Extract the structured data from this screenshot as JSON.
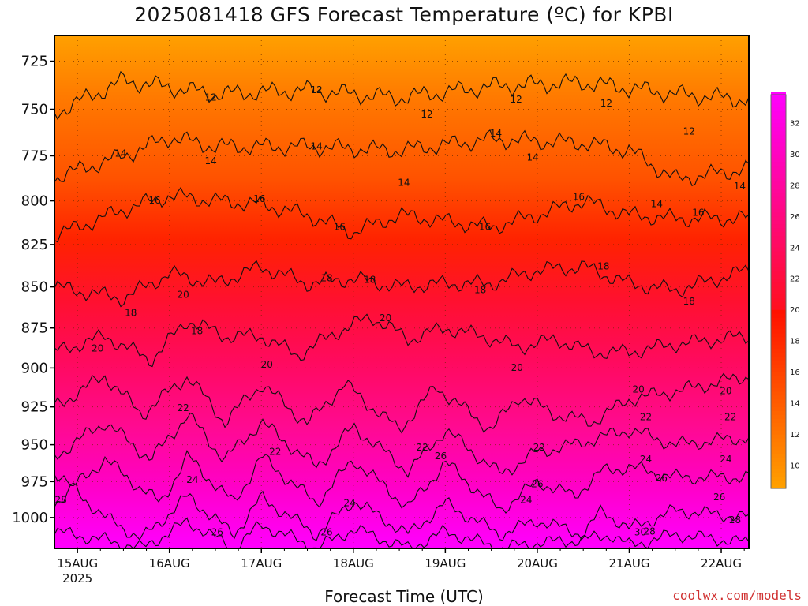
{
  "title": "2025081418 GFS Forecast Temperature (ºC) for KPBI",
  "xlabel": "Forecast Time (UTC)",
  "credit": "coolwx.com/models",
  "chart_data": {
    "type": "heatmap",
    "title": "2025081418 GFS Forecast Temperature (ºC) for KPBI",
    "xlabel": "Forecast Time (UTC)",
    "ylabel": "",
    "x_ticks": [
      "15AUG",
      "16AUG",
      "17AUG",
      "18AUG",
      "19AUG",
      "20AUG",
      "21AUG",
      "22AUG"
    ],
    "x_year_label": "2025",
    "y_ticks": [
      725,
      750,
      775,
      800,
      825,
      850,
      875,
      900,
      925,
      950,
      975,
      1000
    ],
    "x_range_days": [
      -0.25,
      7.3
    ],
    "y_range_hpa": [
      712,
      1022
    ],
    "y_scale": "log-pressure",
    "grid": true,
    "colorbar_ticks": [
      10,
      12,
      14,
      16,
      18,
      20,
      22,
      24,
      26,
      28,
      30,
      32
    ],
    "colorbar_range": [
      8.5,
      33.8
    ],
    "colorbar_placement": "right",
    "colors": {
      "low": "#ffa500",
      "mid": "#ff1a00",
      "high": "#ff00ff",
      "terrain": "#9b5a3c"
    },
    "contour_interval": 2,
    "contours": [
      {
        "level": 12,
        "profile": [
          [
            -0.25,
            752
          ],
          [
            0.5,
            735
          ],
          [
            1.5,
            742
          ],
          [
            2.5,
            740
          ],
          [
            3.5,
            744
          ],
          [
            4.5,
            738
          ],
          [
            5.5,
            736
          ],
          [
            6.5,
            742
          ],
          [
            7.3,
            745
          ]
        ]
      },
      {
        "level": 14,
        "profile": [
          [
            -0.25,
            787
          ],
          [
            0.5,
            775
          ],
          [
            1.0,
            765
          ],
          [
            1.5,
            770
          ],
          [
            2.5,
            770
          ],
          [
            3.5,
            772
          ],
          [
            4.5,
            766
          ],
          [
            5.5,
            768
          ],
          [
            6.0,
            772
          ],
          [
            6.5,
            788
          ],
          [
            7.3,
            782
          ]
        ]
      },
      {
        "level": 16,
        "profile": [
          [
            -0.25,
            820
          ],
          [
            0.5,
            805
          ],
          [
            1.0,
            797
          ],
          [
            1.5,
            800
          ],
          [
            2.0,
            802
          ],
          [
            2.5,
            808
          ],
          [
            3.0,
            818
          ],
          [
            3.5,
            808
          ],
          [
            4.5,
            815
          ],
          [
            5.0,
            808
          ],
          [
            5.5,
            800
          ],
          [
            6.0,
            808
          ],
          [
            6.5,
            810
          ],
          [
            7.3,
            810
          ]
        ]
      },
      {
        "level": 18,
        "profile": [
          [
            -0.25,
            850
          ],
          [
            0.5,
            857
          ],
          [
            1.0,
            842
          ],
          [
            1.5,
            848
          ],
          [
            2.0,
            838
          ],
          [
            2.5,
            848
          ],
          [
            3.0,
            845
          ],
          [
            3.5,
            850
          ],
          [
            4.0,
            848
          ],
          [
            4.5,
            848
          ],
          [
            5.0,
            840
          ],
          [
            5.5,
            838
          ],
          [
            6.0,
            848
          ],
          [
            6.5,
            852
          ],
          [
            7.3,
            840
          ]
        ]
      },
      {
        "level": 20,
        "profile": [
          [
            -0.25,
            890
          ],
          [
            0.3,
            880
          ],
          [
            0.8,
            895
          ],
          [
            1.2,
            870
          ],
          [
            1.6,
            880
          ],
          [
            2.0,
            880
          ],
          [
            2.4,
            892
          ],
          [
            2.8,
            878
          ],
          [
            3.2,
            868
          ],
          [
            3.6,
            882
          ],
          [
            4.0,
            875
          ],
          [
            4.4,
            880
          ],
          [
            4.8,
            887
          ],
          [
            5.2,
            882
          ],
          [
            5.6,
            890
          ],
          [
            6.0,
            890
          ],
          [
            6.5,
            885
          ],
          [
            7.3,
            880
          ]
        ]
      },
      {
        "level": 22,
        "profile": [
          [
            -0.25,
            925
          ],
          [
            0.3,
            905
          ],
          [
            0.7,
            930
          ],
          [
            1.2,
            905
          ],
          [
            1.6,
            935
          ],
          [
            2.0,
            910
          ],
          [
            2.5,
            936
          ],
          [
            2.9,
            910
          ],
          [
            3.5,
            940
          ],
          [
            3.9,
            912
          ],
          [
            4.5,
            940
          ],
          [
            4.8,
            918
          ],
          [
            5.2,
            930
          ],
          [
            5.6,
            935
          ],
          [
            6.0,
            920
          ],
          [
            6.5,
            915
          ],
          [
            7.3,
            905
          ]
        ]
      },
      {
        "level": 24,
        "profile": [
          [
            -0.25,
            958
          ],
          [
            0.3,
            935
          ],
          [
            0.8,
            960
          ],
          [
            1.2,
            930
          ],
          [
            1.6,
            960
          ],
          [
            2.0,
            935
          ],
          [
            2.6,
            965
          ],
          [
            3.0,
            938
          ],
          [
            3.6,
            968
          ],
          [
            4.0,
            940
          ],
          [
            4.6,
            970
          ],
          [
            5.0,
            955
          ],
          [
            5.4,
            950
          ],
          [
            5.7,
            945
          ],
          [
            6.0,
            940
          ],
          [
            6.5,
            950
          ],
          [
            7.3,
            945
          ]
        ]
      },
      {
        "level": 26,
        "profile": [
          [
            -0.25,
            990
          ],
          [
            0.3,
            960
          ],
          [
            0.9,
            990
          ],
          [
            1.2,
            958
          ],
          [
            1.7,
            990
          ],
          [
            2.0,
            958
          ],
          [
            2.6,
            990
          ],
          [
            3.0,
            960
          ],
          [
            3.6,
            993
          ],
          [
            4.0,
            962
          ],
          [
            4.6,
            995
          ],
          [
            5.0,
            975
          ],
          [
            5.4,
            985
          ],
          [
            5.7,
            968
          ],
          [
            6.0,
            965
          ],
          [
            6.5,
            972
          ],
          [
            7.3,
            972
          ]
        ]
      },
      {
        "level": 28,
        "profile": [
          [
            -0.25,
            968
          ],
          [
            0.3,
            1000
          ],
          [
            0.7,
            1015
          ],
          [
            1.2,
            985
          ],
          [
            1.7,
            1012
          ],
          [
            2.0,
            986
          ],
          [
            2.6,
            1012
          ],
          [
            3.0,
            988
          ],
          [
            3.6,
            1012
          ],
          [
            4.0,
            990
          ],
          [
            4.6,
            1012
          ],
          [
            5.0,
            1002
          ],
          [
            5.5,
            1012
          ],
          [
            5.7,
            995
          ],
          [
            6.0,
            1008
          ],
          [
            6.5,
            995
          ],
          [
            7.3,
            1000
          ]
        ]
      },
      {
        "level": 30,
        "profile": [
          [
            -0.25,
            1010
          ],
          [
            0.3,
            1016
          ],
          [
            0.7,
            1022
          ],
          [
            1.2,
            1003
          ],
          [
            1.7,
            1022
          ],
          [
            2.0,
            1005
          ],
          [
            2.6,
            1022
          ],
          [
            3.0,
            1008
          ],
          [
            3.6,
            1022
          ],
          [
            4.0,
            1010
          ],
          [
            4.6,
            1022
          ],
          [
            5.0,
            1018
          ],
          [
            5.5,
            1016
          ],
          [
            5.8,
            1012
          ],
          [
            6.0,
            1020
          ],
          [
            6.5,
            1012
          ],
          [
            7.3,
            1018
          ]
        ]
      }
    ],
    "contour_labels": [
      {
        "text": "12",
        "x": 1.45,
        "p": 744
      },
      {
        "text": "12",
        "x": 2.6,
        "p": 740
      },
      {
        "text": "12",
        "x": 3.8,
        "p": 753
      },
      {
        "text": "12",
        "x": 4.77,
        "p": 745
      },
      {
        "text": "12",
        "x": 5.75,
        "p": 747
      },
      {
        "text": "12",
        "x": 6.65,
        "p": 762
      },
      {
        "text": "14",
        "x": 0.47,
        "p": 774
      },
      {
        "text": "14",
        "x": 1.45,
        "p": 778
      },
      {
        "text": "14",
        "x": 2.6,
        "p": 770
      },
      {
        "text": "14",
        "x": 3.55,
        "p": 790
      },
      {
        "text": "14",
        "x": 4.55,
        "p": 763
      },
      {
        "text": "14",
        "x": 4.95,
        "p": 776
      },
      {
        "text": "14",
        "x": 6.3,
        "p": 802
      },
      {
        "text": "14",
        "x": 7.2,
        "p": 792
      },
      {
        "text": "16",
        "x": 0.84,
        "p": 800
      },
      {
        "text": "16",
        "x": 1.98,
        "p": 799
      },
      {
        "text": "16",
        "x": 2.85,
        "p": 815
      },
      {
        "text": "16",
        "x": 4.43,
        "p": 815
      },
      {
        "text": "16",
        "x": 5.45,
        "p": 798
      },
      {
        "text": "16",
        "x": 6.75,
        "p": 807
      },
      {
        "text": "18",
        "x": 0.58,
        "p": 866
      },
      {
        "text": "18",
        "x": 1.3,
        "p": 877
      },
      {
        "text": "18",
        "x": 2.71,
        "p": 845
      },
      {
        "text": "18",
        "x": 3.18,
        "p": 846
      },
      {
        "text": "18",
        "x": 4.38,
        "p": 852
      },
      {
        "text": "18",
        "x": 5.72,
        "p": 838
      },
      {
        "text": "18",
        "x": 6.65,
        "p": 859
      },
      {
        "text": "20",
        "x": 0.22,
        "p": 888
      },
      {
        "text": "20",
        "x": 1.15,
        "p": 855
      },
      {
        "text": "20",
        "x": 2.06,
        "p": 898
      },
      {
        "text": "20",
        "x": 3.35,
        "p": 869
      },
      {
        "text": "20",
        "x": 4.78,
        "p": 900
      },
      {
        "text": "20",
        "x": 6.1,
        "p": 914
      },
      {
        "text": "20",
        "x": 7.05,
        "p": 915
      },
      {
        "text": "22",
        "x": 1.15,
        "p": 926
      },
      {
        "text": "22",
        "x": 2.15,
        "p": 955
      },
      {
        "text": "22",
        "x": 3.75,
        "p": 952
      },
      {
        "text": "22",
        "x": 5.02,
        "p": 952
      },
      {
        "text": "22",
        "x": 6.18,
        "p": 932
      },
      {
        "text": "22",
        "x": 7.1,
        "p": 932
      },
      {
        "text": "24",
        "x": 1.25,
        "p": 974
      },
      {
        "text": "24",
        "x": 2.96,
        "p": 990
      },
      {
        "text": "24",
        "x": 4.88,
        "p": 988
      },
      {
        "text": "24",
        "x": 6.18,
        "p": 960
      },
      {
        "text": "24",
        "x": 7.05,
        "p": 960
      },
      {
        "text": "26",
        "x": 1.52,
        "p": 1017
      },
      {
        "text": "26",
        "x": 2.71,
        "p": 1014
      },
      {
        "text": "26",
        "x": 3.95,
        "p": 958
      },
      {
        "text": "26",
        "x": 5.0,
        "p": 977
      },
      {
        "text": "26",
        "x": 6.35,
        "p": 973
      },
      {
        "text": "26",
        "x": 6.98,
        "p": 986
      },
      {
        "text": "28",
        "x": -0.18,
        "p": 988
      },
      {
        "text": "28",
        "x": 6.22,
        "p": 1010
      },
      {
        "text": "28",
        "x": 7.15,
        "p": 1002
      },
      {
        "text": "30",
        "x": 6.12,
        "p": 1035
      }
    ],
    "terrain": [
      [
        -0.25,
        1040
      ],
      [
        0.5,
        1040
      ],
      [
        2.0,
        1040
      ],
      [
        3.5,
        1040
      ],
      [
        5.0,
        1038
      ],
      [
        5.5,
        1034
      ],
      [
        6.0,
        1032
      ],
      [
        6.5,
        1031
      ],
      [
        7.3,
        1030
      ]
    ]
  }
}
